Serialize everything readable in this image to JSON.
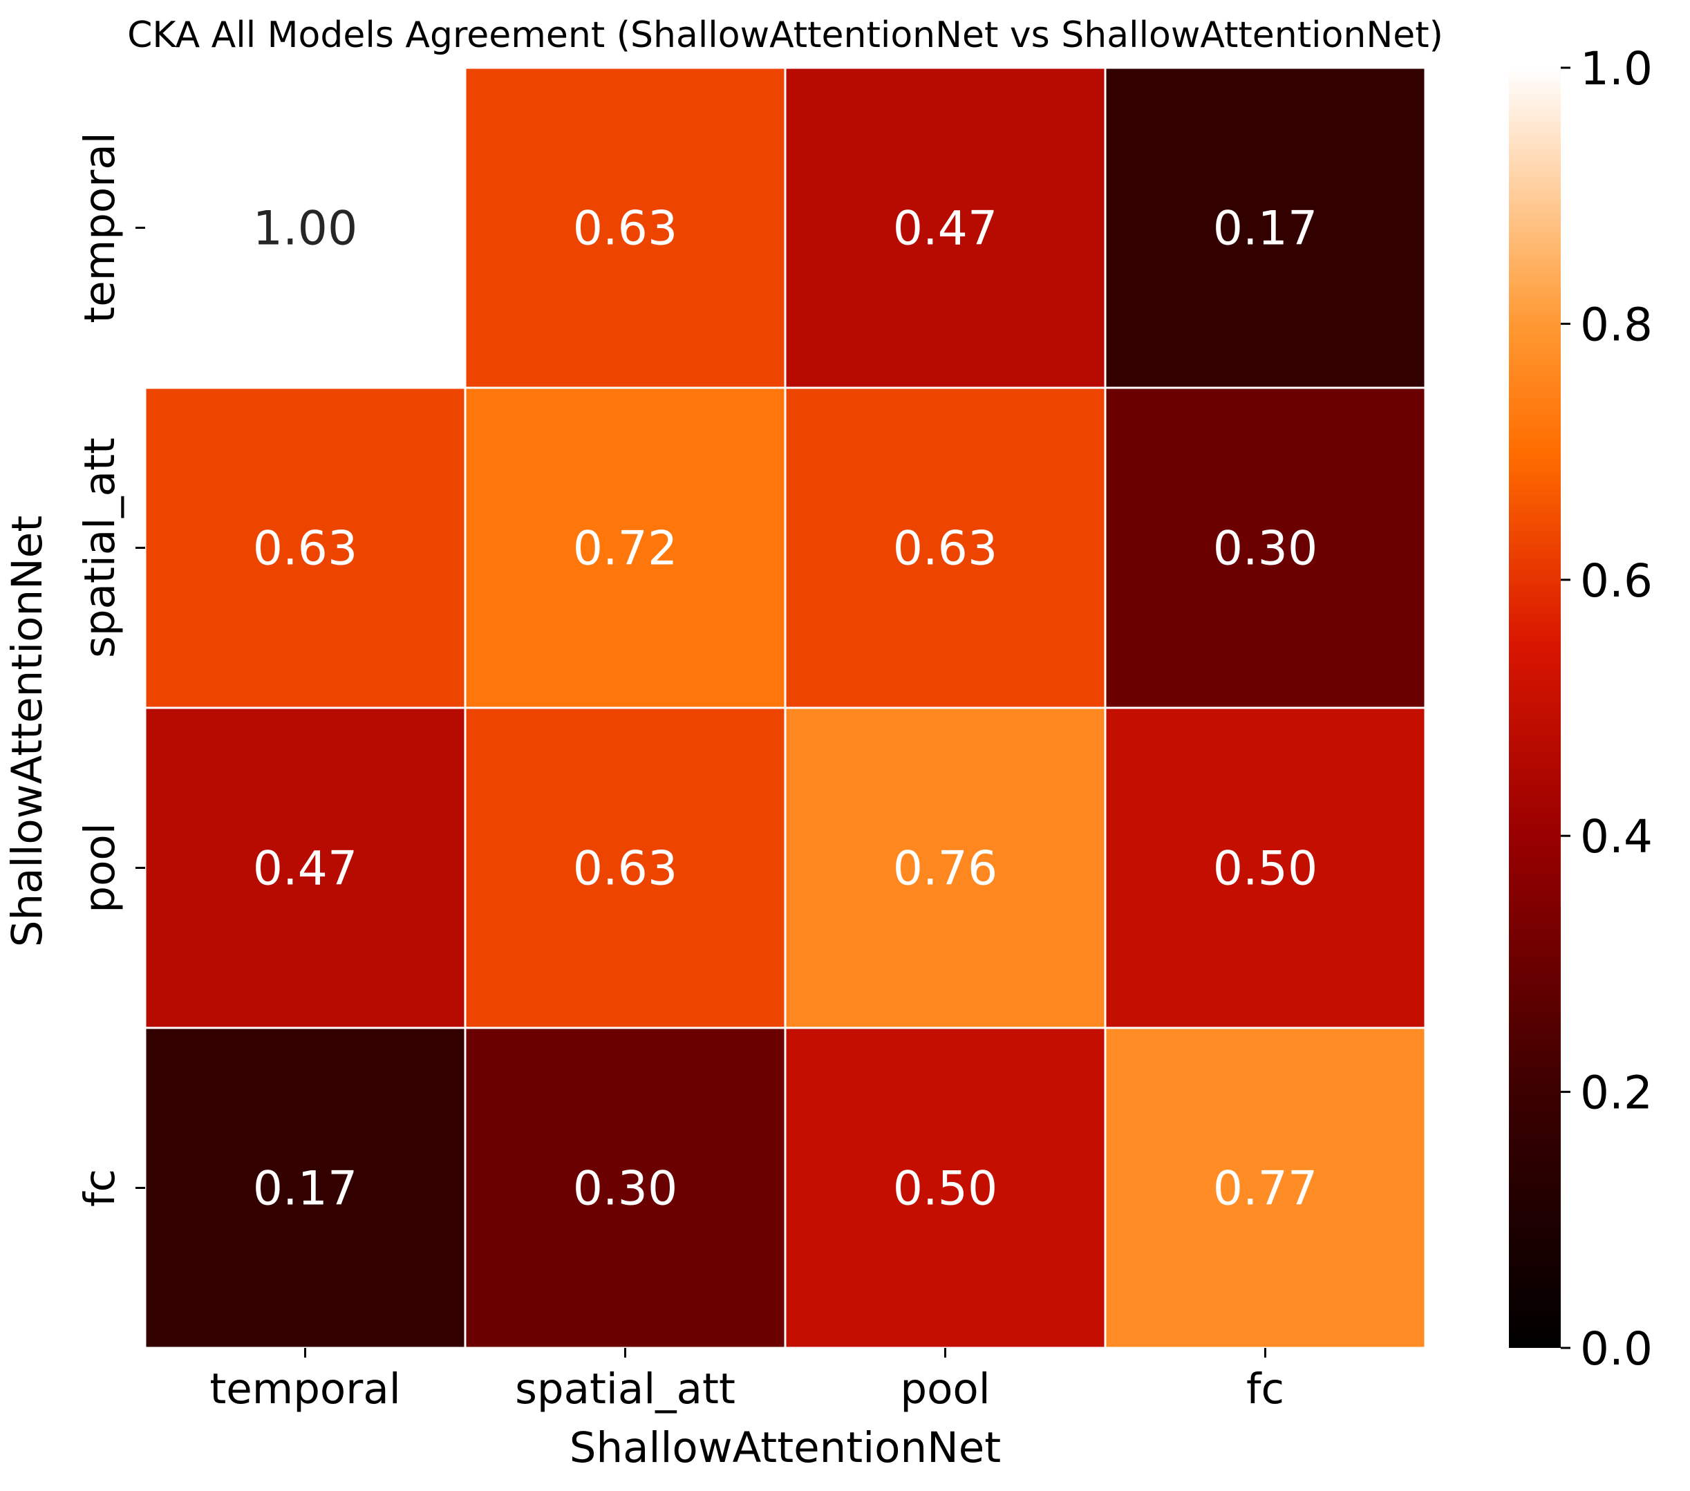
{
  "chart_data": {
    "type": "heatmap",
    "title": "CKA All Models Agreement (ShallowAttentionNet vs ShallowAttentionNet)",
    "xlabel": "ShallowAttentionNet",
    "ylabel": "ShallowAttentionNet",
    "x_categories": [
      "temporal",
      "spatial_att",
      "pool",
      "fc"
    ],
    "y_categories": [
      "temporal",
      "spatial_att",
      "pool",
      "fc"
    ],
    "values": [
      [
        1.0,
        0.63,
        0.47,
        0.17
      ],
      [
        0.63,
        0.72,
        0.63,
        0.3
      ],
      [
        0.47,
        0.63,
        0.76,
        0.5
      ],
      [
        0.17,
        0.3,
        0.5,
        0.77
      ]
    ],
    "annotations": [
      [
        "1.00",
        "0.63",
        "0.47",
        "0.17"
      ],
      [
        "0.63",
        "0.72",
        "0.63",
        "0.30"
      ],
      [
        "0.47",
        "0.63",
        "0.76",
        "0.50"
      ],
      [
        "0.17",
        "0.30",
        "0.50",
        "0.77"
      ]
    ],
    "colormap": "gist_heat",
    "vmin": 0.0,
    "vmax": 1.0,
    "colorbar_ticks": [
      "0.0",
      "0.2",
      "0.4",
      "0.6",
      "0.8",
      "1.0"
    ],
    "colorbar_tick_values": [
      0.0,
      0.2,
      0.4,
      0.6,
      0.8,
      1.0
    ],
    "grid": true,
    "cell_border_color": "#ffffff",
    "annotation_color_light": "#ffffff",
    "annotation_color_dark": "#262626"
  }
}
